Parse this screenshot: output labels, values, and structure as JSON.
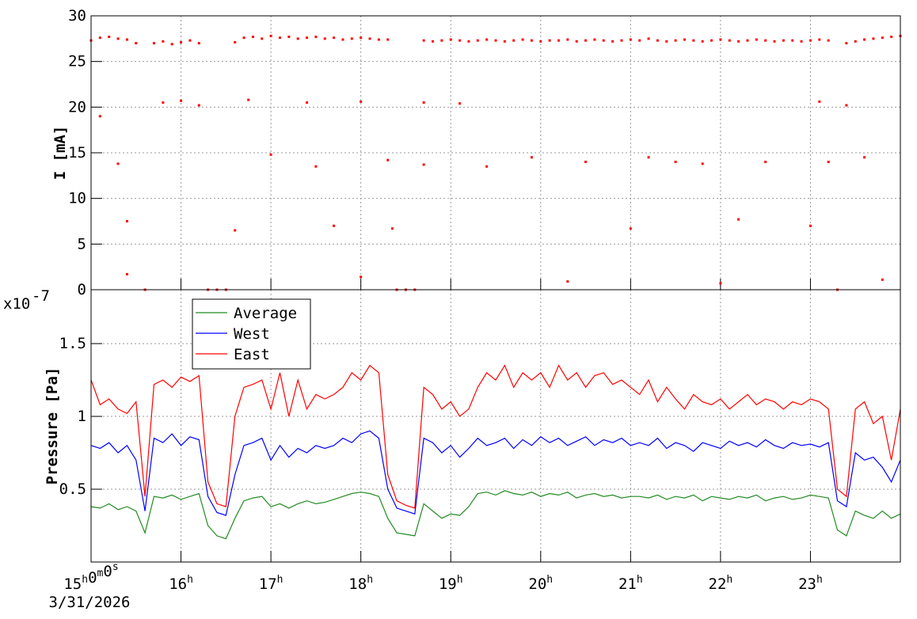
{
  "chart_data": [
    {
      "type": "scatter",
      "y_label": "I [mA]",
      "color": "#ff0000",
      "xlim": [
        15,
        24
      ],
      "xticks": [
        15,
        16,
        17,
        18,
        19,
        20,
        21,
        22,
        23
      ],
      "ylim": [
        0,
        30
      ],
      "yticks": [
        0,
        5,
        10,
        15,
        20,
        25,
        30
      ],
      "grid": true,
      "x": [
        15,
        15.1,
        15.2,
        15.3,
        15.4,
        15.5,
        15.6,
        15.7,
        15.8,
        15.9,
        16,
        16.1,
        16.2,
        16.3,
        16.4,
        16.5,
        16.6,
        16.7,
        16.8,
        16.9,
        17,
        17.1,
        17.2,
        17.3,
        17.4,
        17.5,
        17.6,
        17.7,
        17.8,
        17.9,
        18,
        18.1,
        18.2,
        18.3,
        18.4,
        18.5,
        18.6,
        18.7,
        18.8,
        18.9,
        19,
        19.1,
        19.2,
        19.3,
        19.4,
        19.5,
        19.6,
        19.7,
        19.8,
        19.9,
        20,
        20.1,
        20.2,
        20.3,
        20.4,
        20.5,
        20.6,
        20.7,
        20.8,
        20.9,
        21,
        21.1,
        21.2,
        21.3,
        21.4,
        21.5,
        21.6,
        21.7,
        21.8,
        21.9,
        22,
        22.1,
        22.2,
        22.3,
        22.4,
        22.5,
        22.6,
        22.7,
        22.8,
        22.9,
        23,
        23.1,
        23.2,
        23.3,
        23.4,
        23.5,
        23.6,
        23.7,
        23.8,
        23.9,
        24,
        15.1,
        15.3,
        15.4,
        15.8,
        16,
        16.2,
        16.75,
        17,
        17.4,
        17.5,
        18,
        18.3,
        18.7,
        18.7,
        19.1,
        19.4,
        19.9,
        20.5,
        21,
        21.2,
        21.5,
        21.8,
        22.2,
        22.5,
        23,
        23.1,
        23.4,
        23.2,
        23.6,
        16.6,
        17.7,
        18.35,
        15.4,
        18,
        20.3,
        23.8,
        22
      ],
      "values": [
        27.3,
        27.6,
        27.7,
        27.5,
        27.4,
        27.0,
        0,
        27.0,
        27.2,
        26.9,
        27.1,
        27.3,
        27.0,
        0,
        0,
        0,
        27.1,
        27.6,
        27.7,
        27.5,
        27.8,
        27.6,
        27.7,
        27.5,
        27.6,
        27.7,
        27.5,
        27.6,
        27.4,
        27.5,
        27.6,
        27.5,
        27.4,
        27.4,
        0,
        0,
        0,
        27.3,
        27.2,
        27.3,
        27.4,
        27.3,
        27.2,
        27.3,
        27.4,
        27.3,
        27.2,
        27.3,
        27.4,
        27.3,
        27.2,
        27.3,
        27.3,
        27.4,
        27.2,
        27.3,
        27.4,
        27.3,
        27.2,
        27.3,
        27.4,
        27.3,
        27.5,
        27.3,
        27.2,
        27.3,
        27.4,
        27.3,
        27.2,
        27.3,
        27.4,
        27.3,
        27.2,
        27.3,
        27.4,
        27.3,
        27.2,
        27.3,
        27.3,
        27.2,
        27.3,
        27.4,
        27.3,
        0,
        27.0,
        27.2,
        27.4,
        27.5,
        27.6,
        27.7,
        27.8,
        19.0,
        13.8,
        7.5,
        20.5,
        20.7,
        20.2,
        20.8,
        14.8,
        20.5,
        13.5,
        20.6,
        14.2,
        20.5,
        13.7,
        20.4,
        13.5,
        14.5,
        14.0,
        6.7,
        14.5,
        14.0,
        13.8,
        7.7,
        14.0,
        7.0,
        20.6,
        20.2,
        14.0,
        14.5,
        6.5,
        7.0,
        6.7,
        1.7,
        1.4,
        0.9,
        1.1,
        0.7
      ]
    },
    {
      "type": "line",
      "y_label": "Pressure [Pa]",
      "y_multiplier": "x10",
      "y_exponent": "-7",
      "x_offset_label": "3/31/2026",
      "legend": "top-left",
      "xlim": [
        15,
        24
      ],
      "xticks": [
        {
          "value": 15,
          "label": "15h0m0s"
        },
        {
          "value": 16,
          "label": "16h"
        },
        {
          "value": 17,
          "label": "17h"
        },
        {
          "value": 18,
          "label": "18h"
        },
        {
          "value": 19,
          "label": "19h"
        },
        {
          "value": 20,
          "label": "20h"
        },
        {
          "value": 21,
          "label": "21h"
        },
        {
          "value": 22,
          "label": "22h"
        },
        {
          "value": 23,
          "label": "23h"
        }
      ],
      "ylim": [
        0,
        1.87
      ],
      "yticks": [
        0.5,
        1,
        1.5
      ],
      "grid": true,
      "x": [
        15,
        15.1,
        15.2,
        15.3,
        15.4,
        15.5,
        15.6,
        15.7,
        15.8,
        15.9,
        16,
        16.1,
        16.2,
        16.3,
        16.4,
        16.5,
        16.6,
        16.7,
        16.8,
        16.9,
        17,
        17.1,
        17.2,
        17.3,
        17.4,
        17.5,
        17.6,
        17.7,
        17.8,
        17.9,
        18,
        18.1,
        18.2,
        18.3,
        18.4,
        18.5,
        18.6,
        18.7,
        18.8,
        18.9,
        19,
        19.1,
        19.2,
        19.3,
        19.4,
        19.5,
        19.6,
        19.7,
        19.8,
        19.9,
        20,
        20.1,
        20.2,
        20.3,
        20.4,
        20.5,
        20.6,
        20.7,
        20.8,
        20.9,
        21,
        21.1,
        21.2,
        21.3,
        21.4,
        21.5,
        21.6,
        21.7,
        21.8,
        21.9,
        22,
        22.1,
        22.2,
        22.3,
        22.4,
        22.5,
        22.6,
        22.7,
        22.8,
        22.9,
        23,
        23.1,
        23.2,
        23.3,
        23.4,
        23.5,
        23.6,
        23.7,
        23.8,
        23.9,
        24
      ],
      "series": [
        {
          "name": "Average",
          "color": "#228b22",
          "values": [
            0.38,
            0.37,
            0.4,
            0.36,
            0.38,
            0.35,
            0.2,
            0.45,
            0.44,
            0.46,
            0.43,
            0.45,
            0.47,
            0.25,
            0.18,
            0.16,
            0.3,
            0.42,
            0.44,
            0.45,
            0.38,
            0.4,
            0.37,
            0.4,
            0.42,
            0.4,
            0.41,
            0.43,
            0.45,
            0.47,
            0.48,
            0.47,
            0.45,
            0.3,
            0.2,
            0.19,
            0.18,
            0.4,
            0.35,
            0.3,
            0.33,
            0.32,
            0.38,
            0.47,
            0.48,
            0.46,
            0.49,
            0.47,
            0.46,
            0.48,
            0.45,
            0.47,
            0.46,
            0.48,
            0.44,
            0.46,
            0.47,
            0.45,
            0.46,
            0.44,
            0.45,
            0.45,
            0.44,
            0.46,
            0.43,
            0.45,
            0.44,
            0.46,
            0.42,
            0.45,
            0.44,
            0.43,
            0.45,
            0.44,
            0.46,
            0.42,
            0.44,
            0.45,
            0.43,
            0.44,
            0.46,
            0.45,
            0.44,
            0.22,
            0.18,
            0.35,
            0.32,
            0.3,
            0.35,
            0.3,
            0.33
          ]
        },
        {
          "name": "West",
          "color": "#0000ff",
          "values": [
            0.8,
            0.78,
            0.82,
            0.75,
            0.8,
            0.7,
            0.35,
            0.85,
            0.82,
            0.88,
            0.8,
            0.86,
            0.84,
            0.45,
            0.34,
            0.32,
            0.6,
            0.8,
            0.82,
            0.85,
            0.7,
            0.8,
            0.72,
            0.78,
            0.75,
            0.8,
            0.78,
            0.8,
            0.85,
            0.82,
            0.88,
            0.9,
            0.85,
            0.5,
            0.37,
            0.35,
            0.33,
            0.85,
            0.82,
            0.75,
            0.8,
            0.72,
            0.78,
            0.85,
            0.8,
            0.82,
            0.85,
            0.78,
            0.84,
            0.8,
            0.86,
            0.82,
            0.85,
            0.8,
            0.83,
            0.86,
            0.8,
            0.84,
            0.82,
            0.85,
            0.8,
            0.82,
            0.8,
            0.85,
            0.78,
            0.82,
            0.8,
            0.76,
            0.82,
            0.8,
            0.78,
            0.83,
            0.8,
            0.82,
            0.79,
            0.84,
            0.8,
            0.78,
            0.82,
            0.8,
            0.81,
            0.79,
            0.82,
            0.42,
            0.38,
            0.75,
            0.7,
            0.72,
            0.65,
            0.55,
            0.7
          ]
        },
        {
          "name": "East",
          "color": "#ff0000",
          "values": [
            1.25,
            1.08,
            1.12,
            1.05,
            1.02,
            1.1,
            0.45,
            1.22,
            1.25,
            1.2,
            1.27,
            1.24,
            1.28,
            0.55,
            0.4,
            0.38,
            1.0,
            1.2,
            1.22,
            1.25,
            1.05,
            1.3,
            1.0,
            1.25,
            1.05,
            1.15,
            1.12,
            1.15,
            1.2,
            1.3,
            1.25,
            1.35,
            1.3,
            0.6,
            0.42,
            0.39,
            0.37,
            1.2,
            1.15,
            1.05,
            1.1,
            1.0,
            1.05,
            1.2,
            1.3,
            1.25,
            1.35,
            1.2,
            1.3,
            1.25,
            1.3,
            1.2,
            1.35,
            1.25,
            1.3,
            1.2,
            1.28,
            1.3,
            1.22,
            1.25,
            1.2,
            1.15,
            1.25,
            1.1,
            1.2,
            1.12,
            1.05,
            1.15,
            1.1,
            1.08,
            1.12,
            1.05,
            1.1,
            1.15,
            1.08,
            1.12,
            1.1,
            1.05,
            1.1,
            1.08,
            1.12,
            1.1,
            1.05,
            0.5,
            0.45,
            1.05,
            1.1,
            0.95,
            1.0,
            0.7,
            1.05
          ]
        }
      ]
    }
  ]
}
